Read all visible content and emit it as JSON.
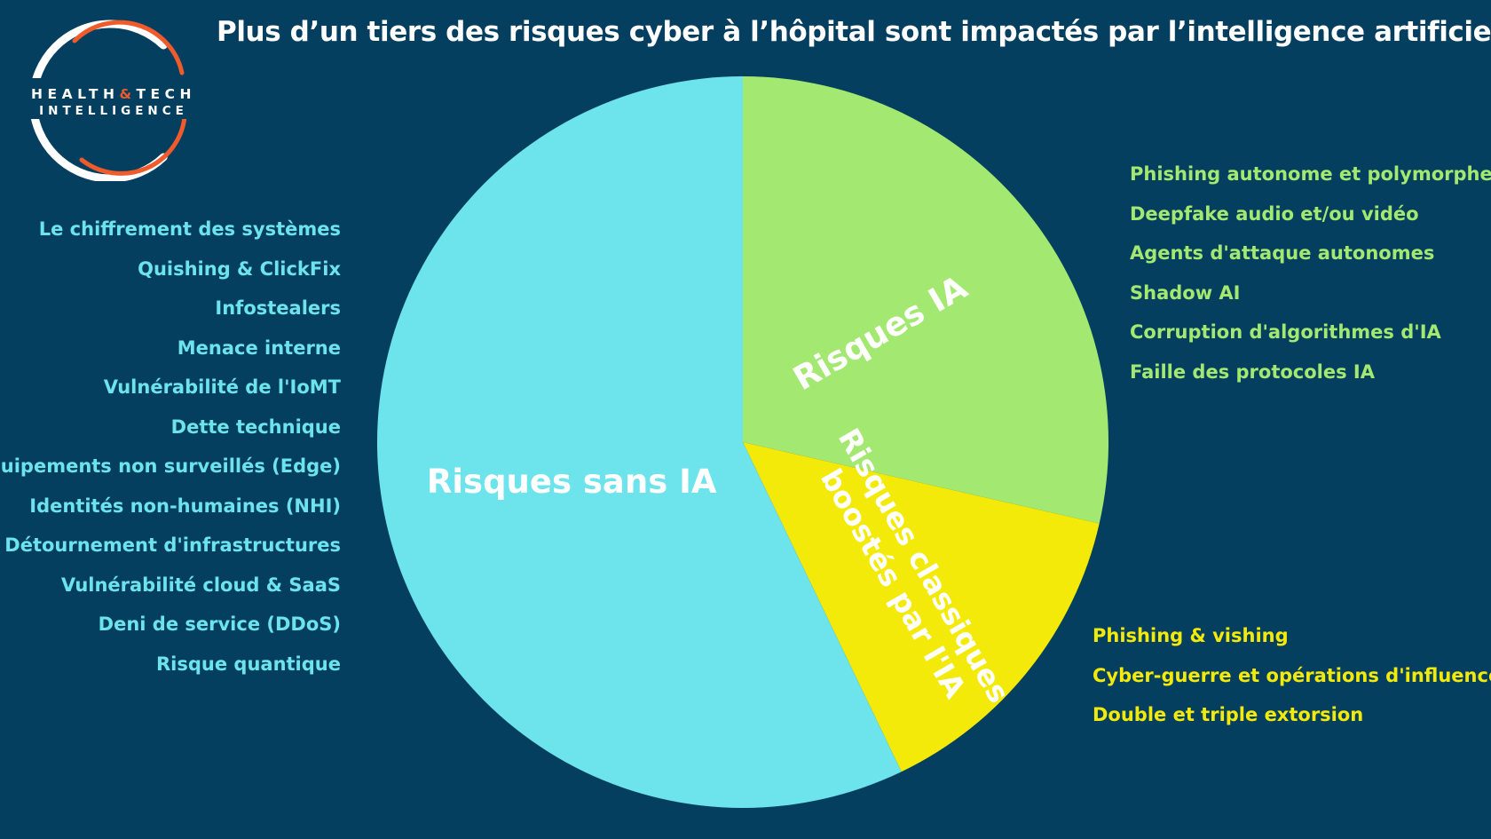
{
  "title": "Plus d’un tiers des risques cyber à l’hôpital sont impactés par l’intelligence artificielle",
  "logo": {
    "line1_left": "HEALTH",
    "line1_amp": "&",
    "line1_right": "TECH",
    "line2": "INTELLIGENCE"
  },
  "colors": {
    "background": "#043f60",
    "sans_ia": "#6de3ec",
    "ia": "#a3e870",
    "boostes": "#f4ea09",
    "logo_accent": "#ef5b2b"
  },
  "chart_data": {
    "type": "pie",
    "start_angle_deg": 0,
    "direction": "clockwise",
    "series": [
      {
        "name": "Risques IA",
        "value": 6,
        "color": "#a3e870",
        "label": [
          "Risques IA"
        ]
      },
      {
        "name": "Risques classiques boostés par l'IA",
        "value": 3,
        "color": "#f4ea09",
        "label": [
          "Risques classiques",
          "boostés par l'IA"
        ]
      },
      {
        "name": "Risques sans IA",
        "value": 12,
        "color": "#6de3ec",
        "label": [
          "Risques sans IA"
        ]
      }
    ]
  },
  "lists": {
    "sans_ia": [
      "Le chiffrement des systèmes",
      "Quishing & ClickFix",
      "Infostealers",
      "Menace interne",
      "Vulnérabilité de l'IoMT",
      "Dette technique",
      "Équipements non surveillés (Edge)",
      "Identités non-humaines (NHI)",
      "Détournement d'infrastructures",
      "Vulnérabilité cloud & SaaS",
      "Deni de service (DDoS)",
      "Risque quantique"
    ],
    "ia": [
      "Phishing autonome et polymorphe",
      "Deepfake audio et/ou vidéo",
      "Agents d'attaque autonomes",
      "Shadow AI",
      "Corruption d'algorithmes d'IA",
      "Faille des protocoles IA"
    ],
    "boostes": [
      "Phishing & vishing",
      "Cyber-guerre et opérations d'influence",
      "Double et triple extorsion"
    ]
  }
}
